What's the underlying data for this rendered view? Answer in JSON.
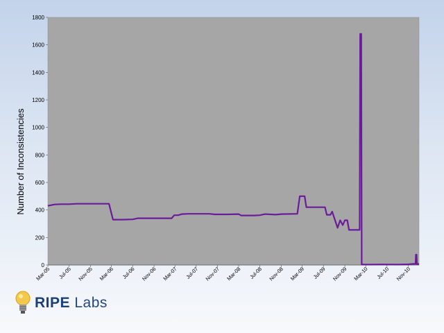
{
  "chart_data": {
    "type": "line",
    "title": "",
    "ylabel": "Number of Inconsistencies",
    "xlabel": "",
    "ylim": [
      0,
      1800
    ],
    "yticks": [
      0,
      200,
      400,
      600,
      800,
      1000,
      1200,
      1400,
      1600,
      1800
    ],
    "xlim": [
      "2005-03",
      "2011-01"
    ],
    "x_tick_labels": [
      "Mar-05",
      "Jul-05",
      "Nov-05",
      "Mar-06",
      "Jul-06",
      "Nov-06",
      "Mar-07",
      "Jul-07",
      "Nov-07",
      "Mar-08",
      "Jul-08",
      "Nov-08",
      "Mar-09",
      "Jul-09",
      "Nov-09",
      "Mar-10",
      "Jul-10",
      "Nov-10"
    ],
    "grid": false,
    "legend": "none",
    "background_color": "#a6a6a6",
    "series": [
      {
        "color": "#6a1b9a",
        "points": [
          [
            "2005-03-01",
            430
          ],
          [
            "2005-03-20",
            435
          ],
          [
            "2005-04-10",
            440
          ],
          [
            "2005-05-15",
            442
          ],
          [
            "2005-07-01",
            442
          ],
          [
            "2005-08-15",
            445
          ],
          [
            "2005-11-01",
            445
          ],
          [
            "2006-01-15",
            445
          ],
          [
            "2006-02-15",
            445
          ],
          [
            "2006-03-10",
            330
          ],
          [
            "2006-05-01",
            330
          ],
          [
            "2006-07-01",
            332
          ],
          [
            "2006-08-01",
            340
          ],
          [
            "2006-11-01",
            340
          ],
          [
            "2007-02-10",
            340
          ],
          [
            "2007-02-25",
            362
          ],
          [
            "2007-03-20",
            362
          ],
          [
            "2007-04-10",
            370
          ],
          [
            "2007-05-15",
            372
          ],
          [
            "2007-07-01",
            372
          ],
          [
            "2007-09-15",
            372
          ],
          [
            "2007-10-15",
            368
          ],
          [
            "2008-01-01",
            368
          ],
          [
            "2008-03-01",
            370
          ],
          [
            "2008-03-15",
            360
          ],
          [
            "2008-06-01",
            360
          ],
          [
            "2008-07-01",
            362
          ],
          [
            "2008-08-01",
            370
          ],
          [
            "2008-10-01",
            366
          ],
          [
            "2008-11-01",
            370
          ],
          [
            "2009-02-01",
            372
          ],
          [
            "2009-02-15",
            500
          ],
          [
            "2009-03-15",
            500
          ],
          [
            "2009-03-25",
            420
          ],
          [
            "2009-06-15",
            420
          ],
          [
            "2009-07-10",
            420
          ],
          [
            "2009-07-20",
            365
          ],
          [
            "2009-08-10",
            365
          ],
          [
            "2009-08-20",
            388
          ],
          [
            "2009-09-20",
            270
          ],
          [
            "2009-10-05",
            325
          ],
          [
            "2009-10-20",
            290
          ],
          [
            "2009-11-01",
            325
          ],
          [
            "2009-11-15",
            325
          ],
          [
            "2009-11-25",
            255
          ],
          [
            "2010-01-25",
            255
          ],
          [
            "2010-01-28",
            1680
          ],
          [
            "2010-02-03",
            1680
          ],
          [
            "2010-02-06",
            3
          ],
          [
            "2010-04-01",
            3
          ],
          [
            "2010-06-01",
            4
          ],
          [
            "2010-09-01",
            3
          ],
          [
            "2010-11-01",
            5
          ],
          [
            "2010-12-01",
            8
          ],
          [
            "2010-12-12",
            8
          ],
          [
            "2010-12-14",
            75
          ],
          [
            "2010-12-18",
            75
          ],
          [
            "2010-12-20",
            6
          ],
          [
            "2011-01-01",
            8
          ]
        ]
      }
    ]
  },
  "logo": {
    "brand": "RIPE",
    "product": "Labs",
    "bulb_color": "#f2c94c"
  }
}
